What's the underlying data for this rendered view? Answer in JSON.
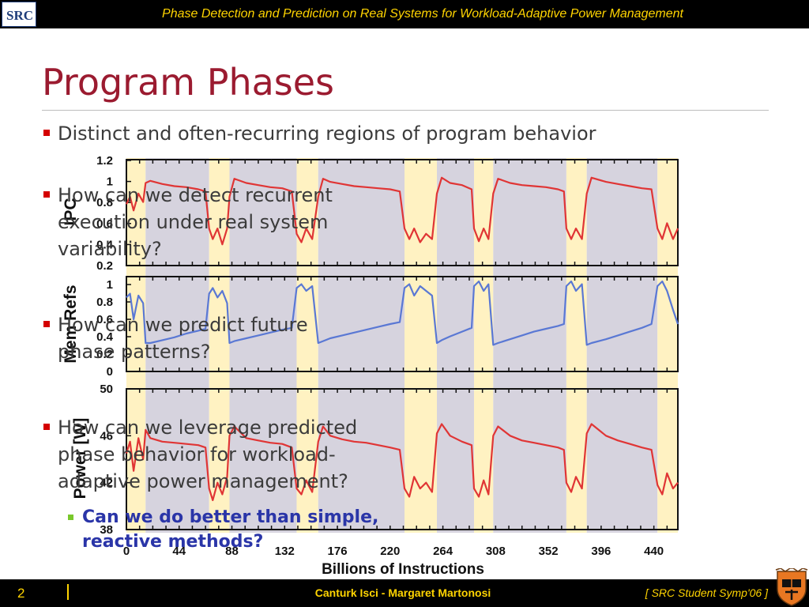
{
  "header": {
    "title": "Phase Detection and Prediction on Real Systems for Workload-Adaptive Power Management",
    "logo_text": "SRC"
  },
  "slide": {
    "title": "Program Phases",
    "bullets": [
      {
        "lines": [
          "Distinct and often-recurring regions of program behavior"
        ]
      },
      {
        "lines": [
          "How can we detect recurrent",
          "execution under real system",
          "variability?"
        ]
      },
      {
        "lines": [
          "How can we predict future",
          "phase patterns?"
        ]
      },
      {
        "lines": [
          "How can we leverage predicted",
          "phase behavior for workload-",
          "adaptive power management?"
        ]
      }
    ],
    "sub_bullet": {
      "lines": [
        "Can we do better than simple,",
        "reactive methods?"
      ]
    }
  },
  "footer": {
    "page_number": "2",
    "authors": "Canturk Isci - Margaret Martonosi",
    "venue": "[ SRC Student Symp'06 ]"
  },
  "colors": {
    "title": "#9b1b30",
    "header_text": "#ffd400",
    "bullet_mark": "#d40000",
    "sub_bullet_text": "#2a35a8",
    "sub_bullet_mark": "#79c82b",
    "band_yellow": "#fff2c2",
    "band_gray": "#d6d3de",
    "ipc_line": "#e03535",
    "mem_line": "#5a78d4",
    "power_line": "#e03535"
  },
  "chart_data": {
    "type": "line",
    "x_axis": {
      "label": "Billions of Instructions",
      "range": [
        0,
        460
      ],
      "ticks": [
        0,
        44,
        88,
        132,
        176,
        220,
        264,
        308,
        352,
        396,
        440
      ]
    },
    "phase_bands": [
      {
        "phase": "yellow",
        "x": [
          0,
          16
        ]
      },
      {
        "phase": "gray",
        "x": [
          16,
          69
        ]
      },
      {
        "phase": "yellow",
        "x": [
          69,
          86
        ]
      },
      {
        "phase": "gray",
        "x": [
          86,
          142
        ]
      },
      {
        "phase": "yellow",
        "x": [
          142,
          160
        ]
      },
      {
        "phase": "gray",
        "x": [
          160,
          232
        ]
      },
      {
        "phase": "yellow",
        "x": [
          232,
          259
        ]
      },
      {
        "phase": "gray",
        "x": [
          259,
          290
        ]
      },
      {
        "phase": "yellow",
        "x": [
          290,
          306
        ]
      },
      {
        "phase": "gray",
        "x": [
          306,
          367
        ]
      },
      {
        "phase": "yellow",
        "x": [
          367,
          384
        ]
      },
      {
        "phase": "gray",
        "x": [
          384,
          443
        ]
      },
      {
        "phase": "yellow",
        "x": [
          443,
          460
        ]
      }
    ],
    "panels": [
      {
        "ylabel": "IPC",
        "yrange": [
          0.2,
          1.2
        ],
        "yticks": [
          "1.2",
          "1",
          "0.8",
          "0.6",
          "0.4",
          "0.2"
        ],
        "series": {
          "x": [
            0,
            3,
            6,
            10,
            14,
            16,
            20,
            30,
            40,
            50,
            60,
            66,
            69,
            72,
            76,
            80,
            84,
            86,
            90,
            100,
            110,
            120,
            130,
            138,
            142,
            146,
            150,
            155,
            160,
            164,
            170,
            180,
            190,
            200,
            210,
            220,
            228,
            232,
            236,
            240,
            245,
            250,
            255,
            259,
            263,
            270,
            280,
            288,
            290,
            294,
            298,
            302,
            306,
            310,
            320,
            330,
            340,
            350,
            360,
            365,
            367,
            371,
            375,
            380,
            384,
            388,
            400,
            410,
            420,
            430,
            438,
            443,
            447,
            451,
            456,
            460
          ],
          "values": [
            0.78,
            0.85,
            0.72,
            0.88,
            0.8,
            0.98,
            1.0,
            0.97,
            0.95,
            0.94,
            0.92,
            0.9,
            0.55,
            0.45,
            0.55,
            0.4,
            0.55,
            0.85,
            1.02,
            0.98,
            0.96,
            0.94,
            0.93,
            0.9,
            0.5,
            0.42,
            0.55,
            0.45,
            0.85,
            1.02,
            0.99,
            0.97,
            0.95,
            0.94,
            0.93,
            0.92,
            0.9,
            0.55,
            0.45,
            0.55,
            0.42,
            0.5,
            0.45,
            0.88,
            1.03,
            0.98,
            0.96,
            0.92,
            0.55,
            0.43,
            0.55,
            0.45,
            0.88,
            1.02,
            0.98,
            0.96,
            0.95,
            0.94,
            0.92,
            0.9,
            0.55,
            0.45,
            0.55,
            0.45,
            0.88,
            1.03,
            0.99,
            0.97,
            0.95,
            0.93,
            0.92,
            0.55,
            0.45,
            0.6,
            0.45,
            0.55
          ]
        }
      },
      {
        "ylabel": "Mem Refs",
        "yrange": [
          0,
          1
        ],
        "yticks": [
          "1",
          "0.8",
          "0.6",
          "0.4",
          "0.2",
          "0"
        ],
        "series": {
          "x": [
            0,
            3,
            6,
            10,
            14,
            16,
            20,
            30,
            40,
            50,
            60,
            66,
            69,
            72,
            76,
            80,
            84,
            86,
            90,
            100,
            110,
            120,
            130,
            138,
            142,
            146,
            150,
            155,
            160,
            164,
            170,
            180,
            190,
            200,
            210,
            220,
            228,
            232,
            236,
            240,
            245,
            250,
            255,
            259,
            263,
            270,
            280,
            288,
            290,
            294,
            298,
            302,
            306,
            310,
            320,
            330,
            340,
            350,
            360,
            365,
            367,
            371,
            375,
            380,
            384,
            388,
            400,
            410,
            420,
            430,
            438,
            443,
            447,
            451,
            456,
            460
          ],
          "values": [
            0.78,
            0.82,
            0.55,
            0.8,
            0.72,
            0.3,
            0.3,
            0.33,
            0.36,
            0.4,
            0.43,
            0.45,
            0.82,
            0.88,
            0.78,
            0.85,
            0.72,
            0.3,
            0.32,
            0.35,
            0.38,
            0.41,
            0.44,
            0.46,
            0.88,
            0.92,
            0.85,
            0.9,
            0.3,
            0.32,
            0.35,
            0.38,
            0.41,
            0.44,
            0.47,
            0.5,
            0.52,
            0.88,
            0.92,
            0.8,
            0.9,
            0.85,
            0.8,
            0.3,
            0.33,
            0.37,
            0.42,
            0.46,
            0.9,
            0.95,
            0.85,
            0.92,
            0.28,
            0.3,
            0.34,
            0.38,
            0.42,
            0.45,
            0.48,
            0.5,
            0.9,
            0.95,
            0.85,
            0.92,
            0.28,
            0.3,
            0.34,
            0.38,
            0.42,
            0.46,
            0.5,
            0.9,
            0.95,
            0.85,
            0.65,
            0.5
          ]
        }
      },
      {
        "ylabel": "Power [W]",
        "yrange": [
          38,
          50
        ],
        "yticks": [
          "50",
          "46",
          "42",
          "38"
        ],
        "series": {
          "x": [
            0,
            3,
            6,
            10,
            14,
            16,
            20,
            30,
            40,
            50,
            60,
            66,
            69,
            72,
            76,
            80,
            84,
            86,
            90,
            100,
            110,
            120,
            130,
            138,
            142,
            146,
            150,
            155,
            160,
            164,
            170,
            180,
            190,
            200,
            210,
            220,
            228,
            232,
            236,
            240,
            245,
            250,
            255,
            259,
            263,
            270,
            280,
            288,
            290,
            294,
            298,
            302,
            306,
            310,
            320,
            330,
            340,
            350,
            360,
            365,
            367,
            371,
            375,
            380,
            384,
            388,
            400,
            410,
            420,
            430,
            438,
            443,
            447,
            451,
            456,
            460
          ],
          "values": [
            44.5,
            45.5,
            43,
            45.8,
            44,
            46.5,
            45.8,
            45.5,
            45.4,
            45.3,
            45.2,
            45.0,
            41.5,
            40.5,
            42,
            41,
            42.5,
            46.0,
            46.8,
            45.8,
            45.6,
            45.4,
            45.3,
            45.0,
            41.5,
            41.0,
            42.2,
            41.2,
            45.5,
            46.8,
            46.0,
            45.7,
            45.5,
            45.4,
            45.2,
            45.0,
            44.8,
            41.5,
            40.8,
            42.5,
            41.5,
            42.0,
            41.2,
            46.2,
            47.0,
            46.0,
            45.5,
            45.2,
            41.5,
            40.8,
            42.2,
            41.0,
            46.0,
            46.8,
            46.0,
            45.6,
            45.4,
            45.2,
            45.0,
            44.8,
            42.0,
            41.2,
            42.5,
            41.5,
            46.2,
            47.0,
            46.0,
            45.6,
            45.3,
            45.0,
            44.8,
            41.8,
            41.0,
            42.8,
            41.5,
            42.0
          ]
        }
      }
    ]
  }
}
